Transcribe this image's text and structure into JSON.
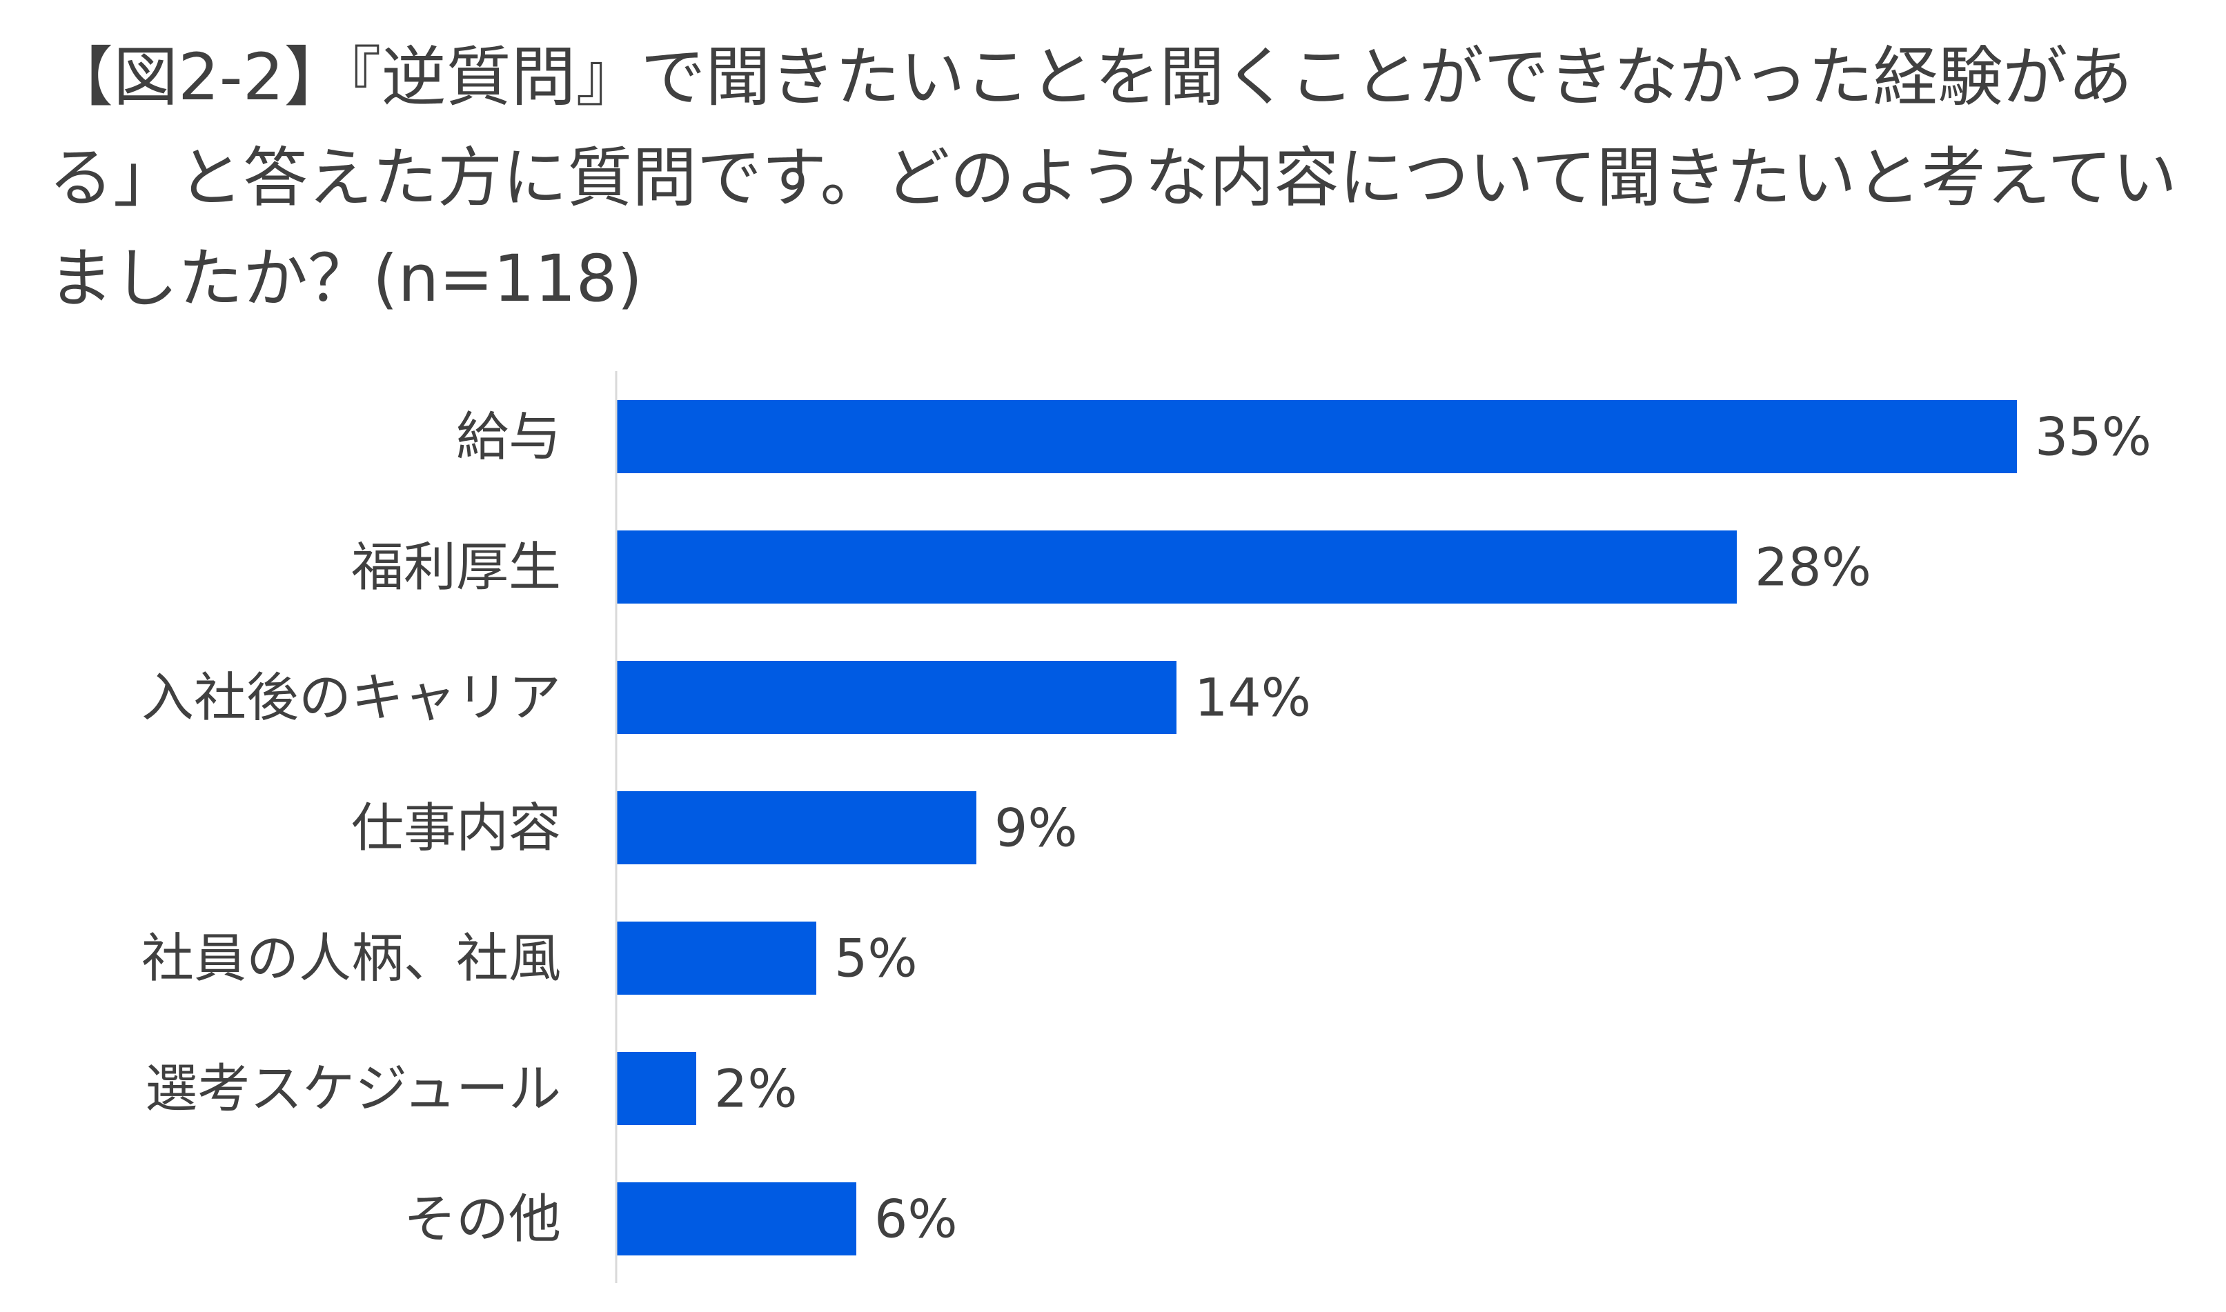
{
  "chart_data": {
    "type": "bar",
    "orientation": "horizontal",
    "title": "【図2-2】『逆質問』で聞きたいことを聞くことができなかった経験がある」と答えた方に質問です。どのような内容について聞きたいと考えていましたか？(n=118)",
    "categories": [
      "給与",
      "福利厚生",
      "入社後のキャリア",
      "仕事内容",
      "社員の人柄、社風",
      "選考スケジュール",
      "その他"
    ],
    "values": [
      35,
      28,
      14,
      9,
      5,
      2,
      6
    ],
    "value_labels": [
      "35%",
      "28%",
      "14%",
      "9%",
      "5%",
      "2%",
      "6%"
    ],
    "xlim": [
      0,
      35
    ],
    "grid": false,
    "legend": "none",
    "colors": {
      "bar": "#005BE3",
      "axis": "#D9D9D9",
      "text": "#404040"
    }
  }
}
